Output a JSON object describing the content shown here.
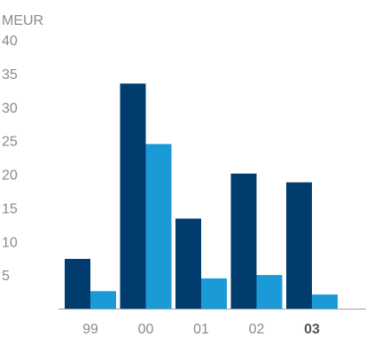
{
  "chart_data": {
    "type": "bar",
    "unit_label": "MEUR",
    "categories": [
      "99",
      "00",
      "01",
      "02",
      "03"
    ],
    "emphasized_category": "03",
    "series": [
      {
        "color": "#003d6e",
        "values": [
          7.4,
          33.5,
          13.4,
          20.1,
          18.8
        ]
      },
      {
        "color": "#1a9ad6",
        "values": [
          2.6,
          24.5,
          4.5,
          5.0,
          2.1
        ]
      }
    ],
    "ylim": [
      0,
      40
    ],
    "yticks": [
      5,
      10,
      15,
      20,
      25,
      30,
      35,
      40
    ],
    "grid": false,
    "legend": "none",
    "baseline_color": "#9e9e9e"
  }
}
